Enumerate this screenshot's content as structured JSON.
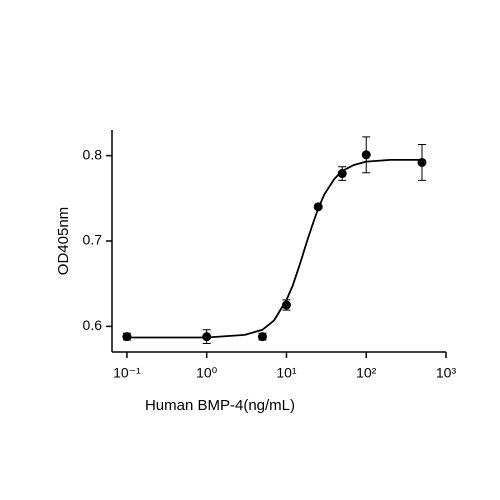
{
  "chart_data": {
    "type": "scatter",
    "x_label": "Human BMP-4(ng/mL)",
    "y_label": "OD405nm",
    "log_x": true,
    "color": "#000000",
    "xlim": [
      0.065,
      1000
    ],
    "ylim": [
      0.57,
      0.83
    ],
    "xticks": [
      {
        "value": 0.1,
        "label": "10⁻¹"
      },
      {
        "value": 1,
        "label": "10⁰"
      },
      {
        "value": 10,
        "label": "10¹"
      },
      {
        "value": 100,
        "label": "10²"
      },
      {
        "value": 1000,
        "label": "10³"
      }
    ],
    "yticks": [
      0.6,
      0.7,
      0.8
    ],
    "points": {
      "x": [
        0.1,
        1,
        5,
        10,
        25,
        50,
        100,
        500
      ],
      "values": [
        0.588,
        0.588,
        0.588,
        0.625,
        0.74,
        0.779,
        0.801,
        0.792
      ],
      "errors": [
        0.004,
        0.008,
        0.004,
        0.006,
        0.002,
        0.008,
        0.021,
        0.021
      ]
    },
    "curve": {
      "x": [
        0.1,
        1,
        3,
        5,
        7,
        10,
        12,
        15,
        18,
        21,
        25,
        30,
        40,
        50,
        70,
        100,
        200,
        500
      ],
      "values": [
        0.587,
        0.587,
        0.59,
        0.596,
        0.607,
        0.631,
        0.648,
        0.675,
        0.699,
        0.718,
        0.738,
        0.755,
        0.773,
        0.782,
        0.789,
        0.793,
        0.795,
        0.795
      ]
    }
  }
}
